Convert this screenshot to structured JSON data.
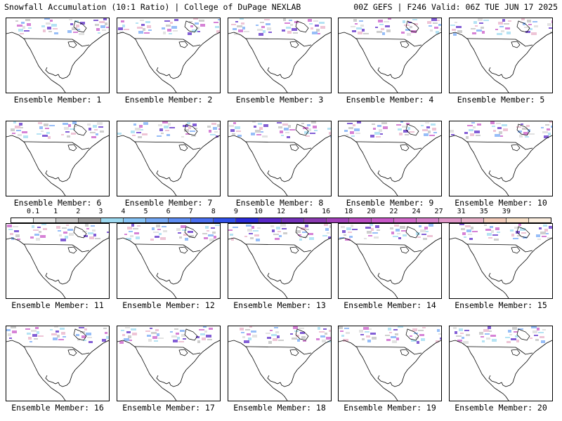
{
  "header": {
    "left": "Snowfall Accumulation (10:1 Ratio) | College of DuPage NEXLAB",
    "right": "00Z GEFS | F246 Valid: 06Z TUE JUN 17 2025"
  },
  "panel_label_prefix": "Ensemble Member: ",
  "members": [
    1,
    2,
    3,
    4,
    5,
    6,
    7,
    8,
    9,
    10,
    11,
    12,
    13,
    14,
    15,
    16,
    17,
    18,
    19,
    20
  ],
  "colorbar": {
    "ticks": [
      "0.1",
      "1",
      "2",
      "3",
      "4",
      "5",
      "6",
      "7",
      "8",
      "9",
      "10",
      "12",
      "14",
      "16",
      "18",
      "20",
      "22",
      "24",
      "27",
      "31",
      "35",
      "39"
    ],
    "colors": [
      "#ffffff",
      "#e6e6e6",
      "#c8c8c8",
      "#a0a0a0",
      "#9cd9f0",
      "#86c3f5",
      "#74a8f5",
      "#5e8df2",
      "#4a6fef",
      "#3050e8",
      "#2a2ad8",
      "#5a28c8",
      "#7230b8",
      "#8a3ab0",
      "#a040b8",
      "#b84ac0",
      "#c858c8",
      "#d068c8",
      "#d67ec8",
      "#e096c8",
      "#e8b0c8",
      "#f2cab8",
      "#f8e0c8",
      "#fbeee0"
    ]
  }
}
